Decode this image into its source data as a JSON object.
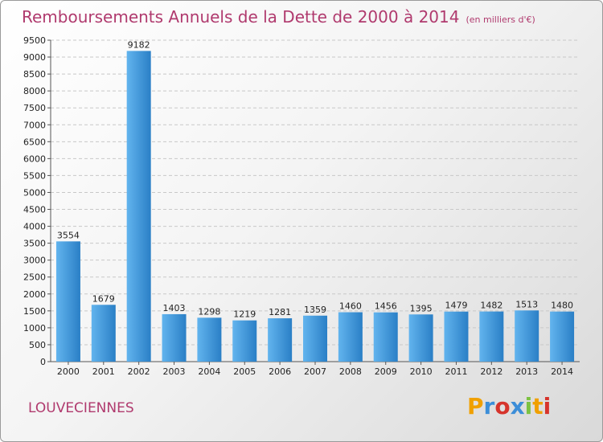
{
  "title": "Remboursements Annuels de la Dette de 2000 à 2014",
  "unit": "(en milliers d'€)",
  "city": "LOUVECIENNES",
  "logo": {
    "chars": [
      "P",
      "r",
      "o",
      "x",
      "i",
      "t",
      "i"
    ],
    "colors": [
      "#f0a000",
      "#3c8ed8",
      "#d6342c",
      "#3c8ed8",
      "#7cc242",
      "#f0a000",
      "#d6342c"
    ]
  },
  "colors": {
    "bar_light": "#62b4ee",
    "bar_dark": "#2a7fc6",
    "title": "#b03a6e"
  },
  "chart_data": {
    "type": "bar",
    "title": "Remboursements Annuels de la Dette de 2000 à 2014",
    "categories": [
      "2000",
      "2001",
      "2002",
      "2003",
      "2004",
      "2005",
      "2006",
      "2007",
      "2008",
      "2009",
      "2010",
      "2011",
      "2012",
      "2013",
      "2014"
    ],
    "values": [
      3554,
      1679,
      9182,
      1403,
      1298,
      1219,
      1281,
      1359,
      1460,
      1456,
      1395,
      1479,
      1482,
      1513,
      1480
    ],
    "ylim": [
      0,
      9500
    ],
    "yticks": [
      0,
      500,
      1000,
      1500,
      2000,
      2500,
      3000,
      3500,
      4000,
      4500,
      5000,
      5500,
      6000,
      6500,
      7000,
      7500,
      8000,
      8500,
      9000,
      9500
    ],
    "grid": true,
    "data_labels": true
  }
}
